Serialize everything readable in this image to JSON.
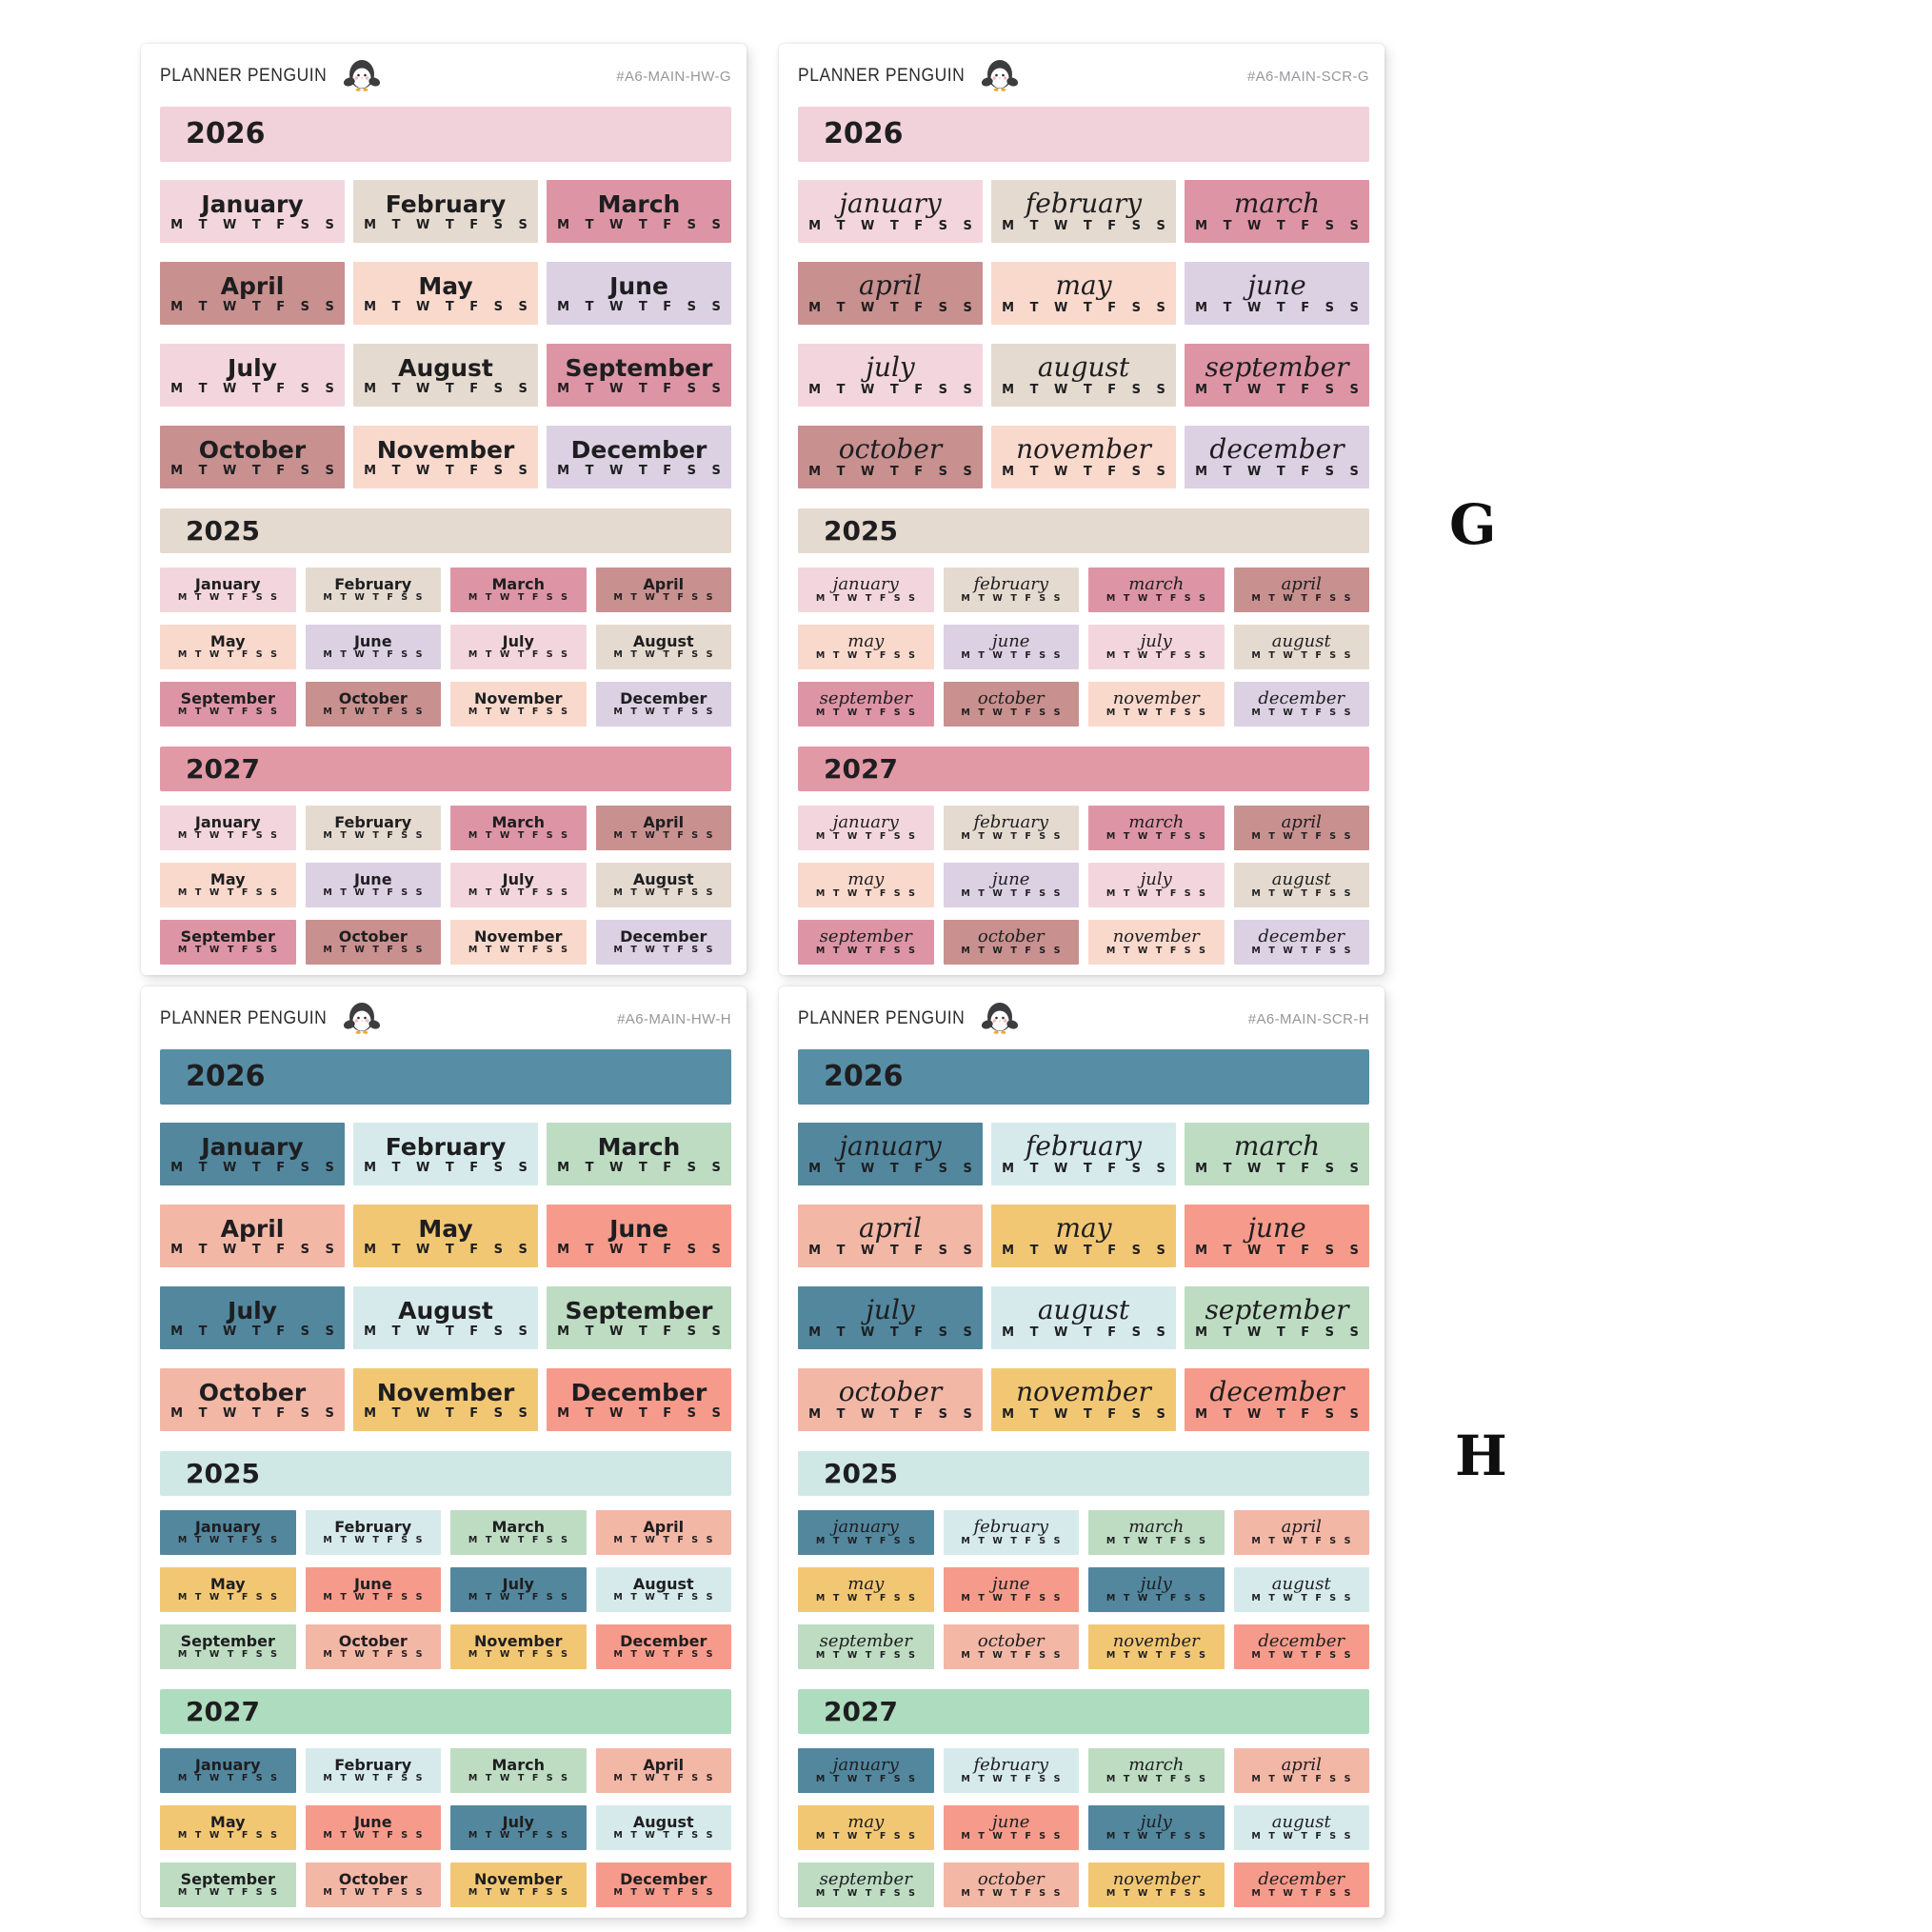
{
  "page": {
    "background": "#ffffff",
    "group_labels": [
      {
        "id": "G",
        "text": "G"
      },
      {
        "id": "H",
        "text": "H"
      }
    ]
  },
  "brand": {
    "name": "PLANNER PENGUIN",
    "logo_icon": "penguin-icon"
  },
  "weekdays": "M T W T F S S",
  "months_print": [
    "January",
    "February",
    "March",
    "April",
    "May",
    "June",
    "July",
    "August",
    "September",
    "October",
    "November",
    "December"
  ],
  "months_script": [
    "january",
    "february",
    "march",
    "april",
    "may",
    "june",
    "july",
    "august",
    "september",
    "october",
    "november",
    "december"
  ],
  "sections": [
    {
      "year": "2026",
      "size": "large",
      "columns": 3
    },
    {
      "year": "2025",
      "size": "small",
      "columns": 4
    },
    {
      "year": "2027",
      "size": "small",
      "columns": 4
    }
  ],
  "palettes": {
    "G": {
      "month_cycle": [
        "#f3d6dd",
        "#e5dacf",
        "#dd95a5",
        "#c8908f",
        "#f9d9cc",
        "#dcd0e3"
      ],
      "banner_colors": {
        "2026": "#f1d2da",
        "2025": "#e5dacf",
        "2027": "#e299a6"
      }
    },
    "H": {
      "month_cycle": [
        "#53879e",
        "#d6eaec",
        "#bddcc2",
        "#f3b7a6",
        "#f2c774",
        "#f69b8b"
      ],
      "banner_colors": {
        "2026": "#578ea6",
        "2025": "#cfe8e6",
        "2027": "#aedcbe"
      }
    }
  },
  "sheets": [
    {
      "code": "#A6-MAIN-HW-G",
      "style": "print",
      "palette": "G",
      "position": "top-left"
    },
    {
      "code": "#A6-MAIN-SCR-G",
      "style": "script",
      "palette": "G",
      "position": "top-right"
    },
    {
      "code": "#A6-MAIN-HW-H",
      "style": "print",
      "palette": "H",
      "position": "bottom-left"
    },
    {
      "code": "#A6-MAIN-SCR-H",
      "style": "script",
      "palette": "H",
      "position": "bottom-right"
    }
  ],
  "text_color": "#1e1e20",
  "code_color": "#97979b"
}
